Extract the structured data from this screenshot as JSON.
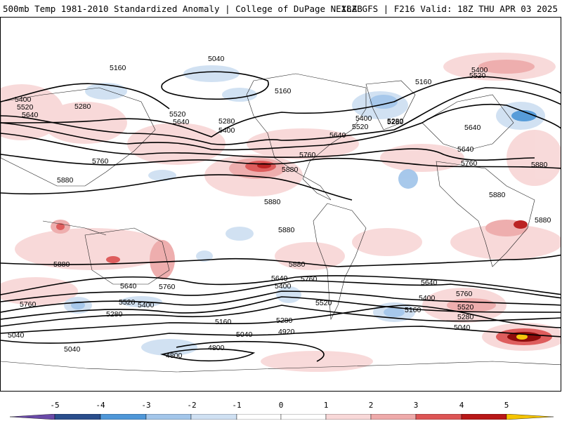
{
  "header": {
    "left_title": "500mb Temp 1981-2010 Standardized Anomaly | College of DuPage NEXLAB",
    "right_title": "18Z GFS | F216 Valid: 18Z THU APR 03 2025"
  },
  "colors": {
    "pos1": "#f8d8d8",
    "pos2": "#eeaaaa",
    "pos3": "#dd5555",
    "pos4": "#b81818",
    "pos5": "#880000",
    "pos6": "#f5c400",
    "neg1": "#cfe0f2",
    "neg2": "#a3c6ea",
    "neg3": "#4f97d8",
    "neg4": "#2a4e8c",
    "neg5": "#6a4aa8"
  },
  "colorbar": {
    "ticks": [
      "-5",
      "-4",
      "-3",
      "-2",
      "-1",
      "0",
      "1",
      "2",
      "3",
      "4",
      "5"
    ]
  },
  "contour_labels": {
    "c1": "5160",
    "c2": "5040",
    "c3": "5400",
    "c4": "5520",
    "c5": "5280",
    "c6": "5160",
    "c7": "5160",
    "c8": "5400",
    "c9": "5520",
    "c10": "5640",
    "c11": "5280",
    "c12": "5520",
    "c13": "5640",
    "c14": "5280",
    "c15": "5400",
    "c16": "5400",
    "c17": "5520",
    "c18": "5640",
    "c19": "5280",
    "c20": "5640",
    "c21": "5640",
    "c22": "5760",
    "c23": "5760",
    "c24": "5880",
    "c25": "5760",
    "c26": "5880",
    "c27": "5880",
    "c28": "5880",
    "c29": "5880",
    "c30": "5880",
    "c31": "5880",
    "c32": "5880",
    "c33": "5880",
    "c34": "5640",
    "c35": "5760",
    "c36": "5640",
    "c37": "5400",
    "c38": "5760",
    "c39": "5640",
    "c40": "5400",
    "c41": "5760",
    "c42": "5520",
    "c43": "5400",
    "c44": "5520",
    "c45": "5280",
    "c46": "5520",
    "c47": "5280",
    "c48": "5160",
    "c49": "5160",
    "c50": "5040",
    "c51": "5040",
    "c52": "5280",
    "c53": "4920",
    "c54": "4800",
    "c55": "4800",
    "c56": "5040",
    "c57": "5040",
    "c58": "5760"
  }
}
